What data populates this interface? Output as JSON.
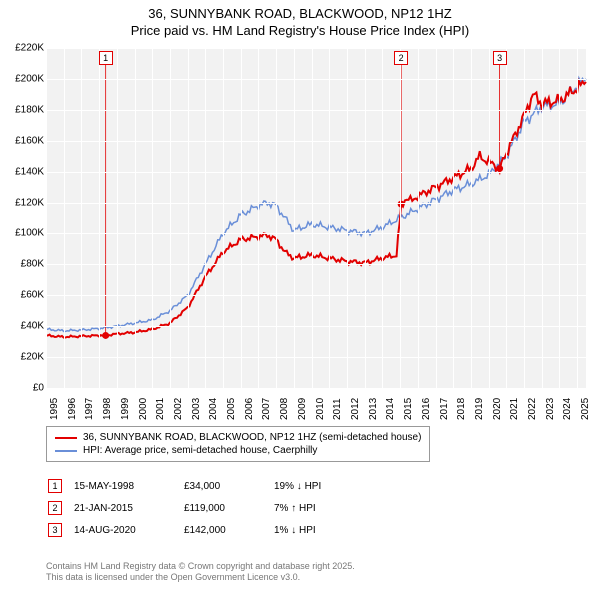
{
  "title_line1": "36, SUNNYBANK ROAD, BLACKWOOD, NP12 1HZ",
  "title_line2": "Price paid vs. HM Land Registry's House Price Index (HPI)",
  "chart": {
    "type": "line",
    "background_color": "#f2f2f2",
    "grid_color": "#ffffff",
    "ylim": [
      0,
      220000
    ],
    "ytick_step": 20000,
    "ytick_labels": [
      "£0",
      "£20K",
      "£40K",
      "£60K",
      "£80K",
      "£100K",
      "£120K",
      "£140K",
      "£160K",
      "£180K",
      "£200K",
      "£220K"
    ],
    "xlim": [
      1995,
      2025.5
    ],
    "xtick_years": [
      1995,
      1996,
      1997,
      1998,
      1999,
      2000,
      2001,
      2002,
      2003,
      2004,
      2005,
      2006,
      2007,
      2008,
      2009,
      2010,
      2011,
      2012,
      2013,
      2014,
      2015,
      2016,
      2017,
      2018,
      2019,
      2020,
      2021,
      2022,
      2023,
      2024,
      2025
    ],
    "series": [
      {
        "name": "hpi",
        "color": "#6a8fd8",
        "width": 1.5,
        "points": [
          [
            1995,
            38000
          ],
          [
            1996,
            37000
          ],
          [
            1997,
            37500
          ],
          [
            1998,
            38500
          ],
          [
            1999,
            40000
          ],
          [
            2000,
            42000
          ],
          [
            2001,
            44000
          ],
          [
            2002,
            50000
          ],
          [
            2003,
            60000
          ],
          [
            2004,
            80000
          ],
          [
            2005,
            100000
          ],
          [
            2006,
            112000
          ],
          [
            2007,
            118000
          ],
          [
            2007.5,
            120000
          ],
          [
            2008,
            118000
          ],
          [
            2008.5,
            110000
          ],
          [
            2009,
            102000
          ],
          [
            2010,
            106000
          ],
          [
            2011,
            104000
          ],
          [
            2012,
            102000
          ],
          [
            2013,
            100000
          ],
          [
            2014,
            104000
          ],
          [
            2015,
            110000
          ],
          [
            2016,
            116000
          ],
          [
            2017,
            122000
          ],
          [
            2018,
            128000
          ],
          [
            2019,
            132000
          ],
          [
            2020,
            138000
          ],
          [
            2021,
            150000
          ],
          [
            2022,
            172000
          ],
          [
            2023,
            182000
          ],
          [
            2024,
            184000
          ],
          [
            2025,
            196000
          ],
          [
            2025.5,
            200000
          ]
        ]
      },
      {
        "name": "price_paid",
        "color": "#e20000",
        "width": 2,
        "points": [
          [
            1995,
            34000
          ],
          [
            1996,
            33000
          ],
          [
            1997,
            33500
          ],
          [
            1998,
            34000
          ],
          [
            1998.37,
            34000
          ],
          [
            1999,
            35000
          ],
          [
            2000,
            36000
          ],
          [
            2001,
            38000
          ],
          [
            2002,
            42000
          ],
          [
            2003,
            52000
          ],
          [
            2004,
            72000
          ],
          [
            2005,
            88000
          ],
          [
            2006,
            96000
          ],
          [
            2007,
            98000
          ],
          [
            2007.5,
            99000
          ],
          [
            2008,
            96000
          ],
          [
            2008.5,
            88000
          ],
          [
            2009,
            84000
          ],
          [
            2010,
            86000
          ],
          [
            2011,
            84000
          ],
          [
            2012,
            82000
          ],
          [
            2013,
            81000
          ],
          [
            2014,
            84000
          ],
          [
            2014.8,
            86000
          ],
          [
            2015.06,
            119000
          ],
          [
            2016,
            124000
          ],
          [
            2017,
            130000
          ],
          [
            2018,
            136000
          ],
          [
            2019,
            142000
          ],
          [
            2019.5,
            150000
          ],
          [
            2020,
            146000
          ],
          [
            2020.62,
            142000
          ],
          [
            2021,
            152000
          ],
          [
            2022,
            176000
          ],
          [
            2022.5,
            190000
          ],
          [
            2023,
            184000
          ],
          [
            2024,
            186000
          ],
          [
            2025,
            194000
          ],
          [
            2025.5,
            198000
          ]
        ]
      }
    ],
    "event_markers": [
      {
        "n": "1",
        "x": 1998.37,
        "y": 34000,
        "color": "#e20000"
      },
      {
        "n": "2",
        "x": 2015.06,
        "y": 119000,
        "color": "#e20000"
      },
      {
        "n": "3",
        "x": 2020.62,
        "y": 142000,
        "color": "#e20000"
      }
    ]
  },
  "legend": {
    "items": [
      {
        "color": "#e20000",
        "label": "36, SUNNYBANK ROAD, BLACKWOOD, NP12 1HZ (semi-detached house)"
      },
      {
        "color": "#6a8fd8",
        "label": "HPI: Average price, semi-detached house, Caerphilly"
      }
    ]
  },
  "events": [
    {
      "n": "1",
      "color": "#e20000",
      "date": "15-MAY-1998",
      "price": "£34,000",
      "delta": "19% ↓ HPI"
    },
    {
      "n": "2",
      "color": "#e20000",
      "date": "21-JAN-2015",
      "price": "£119,000",
      "delta": "7% ↑ HPI"
    },
    {
      "n": "3",
      "color": "#e20000",
      "date": "14-AUG-2020",
      "price": "£142,000",
      "delta": "1% ↓ HPI"
    }
  ],
  "footer_line1": "Contains HM Land Registry data © Crown copyright and database right 2025.",
  "footer_line2": "This data is licensed under the Open Government Licence v3.0."
}
